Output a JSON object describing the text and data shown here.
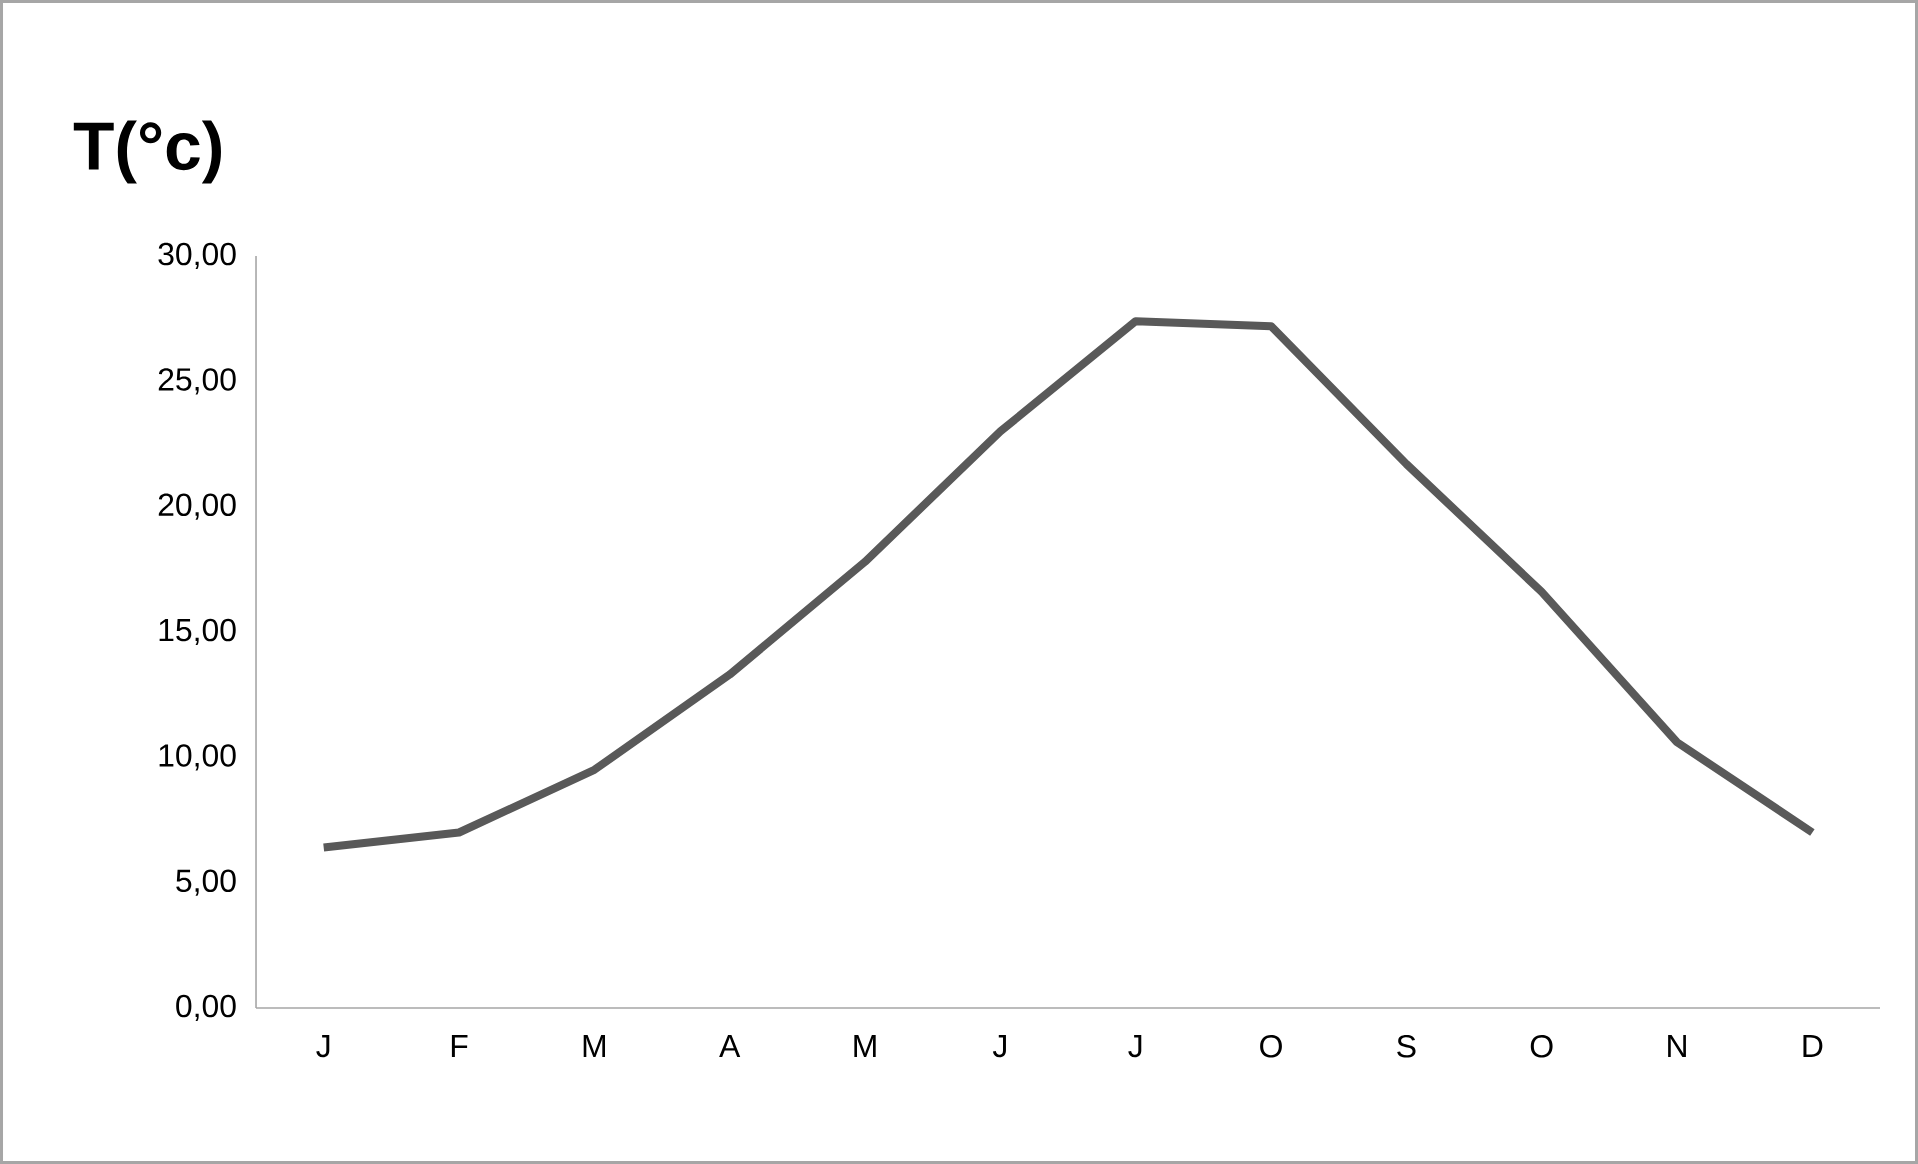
{
  "chart_data": {
    "type": "line",
    "title": "T(°c)",
    "categories": [
      "J",
      "F",
      "M",
      "A",
      "M",
      "J",
      "J",
      "O",
      "S",
      "O",
      "N",
      "D"
    ],
    "series": [
      {
        "color": "#595959",
        "values": [
          6.4,
          7.0,
          9.5,
          13.3,
          17.8,
          23.0,
          27.4,
          27.2,
          21.7,
          16.6,
          10.6,
          7.0
        ]
      }
    ],
    "ylim": [
      0,
      30
    ],
    "yticks": [
      {
        "value": 0,
        "label": "0,00"
      },
      {
        "value": 5,
        "label": "5,00"
      },
      {
        "value": 10,
        "label": "10,00"
      },
      {
        "value": 15,
        "label": "15,00"
      },
      {
        "value": 20,
        "label": "20,00"
      },
      {
        "value": 25,
        "label": "25,00"
      },
      {
        "value": 30,
        "label": "30,00"
      }
    ],
    "grid": false,
    "marker": "none",
    "line_style": "solid"
  }
}
